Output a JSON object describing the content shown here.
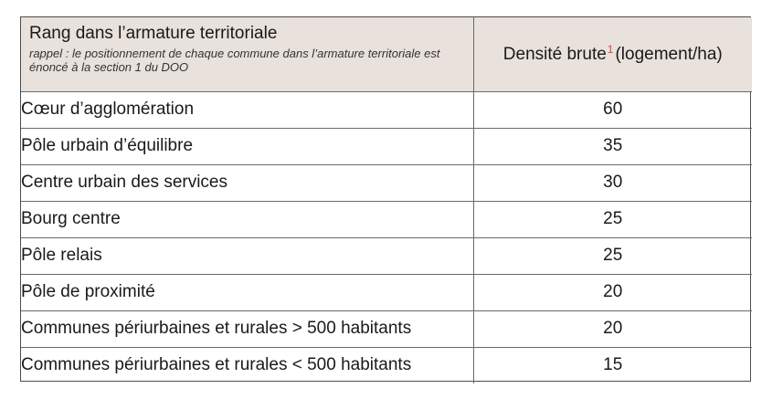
{
  "table": {
    "header": {
      "rank_title": "Rang dans l’armature territoriale",
      "rank_note": "rappel : le positionnement de chaque commune dans l’armature territoriale est énoncé à la section 1 du DOO",
      "density_label": "Densité brute",
      "density_footnote": "1",
      "density_unit": "(logement/ha)"
    },
    "rows": [
      {
        "rank": "Cœur d’agglomération",
        "density": "60"
      },
      {
        "rank": "Pôle urbain d’équilibre",
        "density": "35"
      },
      {
        "rank": "Centre urbain des services",
        "density": "30"
      },
      {
        "rank": "Bourg centre",
        "density": "25"
      },
      {
        "rank": "Pôle relais",
        "density": "25"
      },
      {
        "rank": "Pôle de proximité",
        "density": "20"
      },
      {
        "rank": "Communes périurbaines et rurales > 500 habitants",
        "density": "20"
      },
      {
        "rank": "Communes périurbaines et rurales < 500 habitants",
        "density": "15"
      }
    ]
  },
  "colors": {
    "header_background": "#e9e1dc",
    "footnote_mark": "#d64545",
    "border": "#6a6a6a"
  }
}
